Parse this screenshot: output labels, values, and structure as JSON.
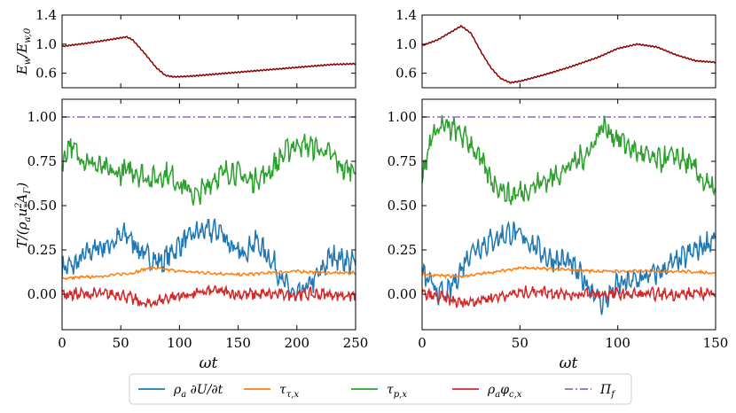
{
  "chart_data": [
    {
      "type": "line",
      "panel": "top-left",
      "ylabel": "E_w/E_w,0",
      "xlim": [
        0,
        250
      ],
      "ylim": [
        0.4,
        1.4
      ],
      "yticks": [
        "0.6",
        "1.0",
        "1.4"
      ],
      "series": [
        {
          "name": "E_w/E_w,0",
          "color": "#8b0000",
          "x": [
            0,
            20,
            40,
            55,
            60,
            70,
            80,
            88,
            95,
            110,
            140,
            170,
            200,
            230,
            250
          ],
          "y": [
            0.97,
            1.01,
            1.06,
            1.1,
            1.06,
            0.88,
            0.68,
            0.57,
            0.55,
            0.56,
            0.6,
            0.64,
            0.68,
            0.72,
            0.73
          ]
        }
      ]
    },
    {
      "type": "line",
      "panel": "top-right",
      "xlim": [
        0,
        150
      ],
      "ylim": [
        0.4,
        1.4
      ],
      "yticks": [
        "0.6",
        "1.0",
        "1.4"
      ],
      "series": [
        {
          "name": "E_w/E_w,0",
          "color": "#8b0000",
          "x": [
            0,
            8,
            15,
            20,
            25,
            30,
            35,
            40,
            45,
            50,
            60,
            75,
            90,
            100,
            110,
            120,
            130,
            140,
            150
          ],
          "y": [
            0.98,
            1.06,
            1.17,
            1.25,
            1.15,
            0.9,
            0.68,
            0.53,
            0.47,
            0.49,
            0.56,
            0.68,
            0.82,
            0.94,
            1.0,
            0.96,
            0.85,
            0.77,
            0.75
          ]
        }
      ]
    },
    {
      "type": "line",
      "panel": "bottom-left",
      "xlabel": "ωt",
      "ylabel": "T/(ρ_a u_*^2 A_Γ)",
      "xlim": [
        0,
        250
      ],
      "ylim": [
        -0.2,
        1.1
      ],
      "xticks": [
        "0",
        "50",
        "100",
        "150",
        "200",
        "250"
      ],
      "yticks": [
        "0.00",
        "0.25",
        "0.50",
        "0.75",
        "1.00"
      ],
      "series": [
        {
          "name": "ρ_a ∂U/∂t",
          "color": "#1f77b4",
          "x": [
            0,
            10,
            25,
            40,
            55,
            70,
            85,
            100,
            115,
            135,
            150,
            165,
            180,
            190,
            200,
            215,
            230,
            250
          ],
          "y": [
            0.15,
            0.16,
            0.25,
            0.28,
            0.34,
            0.22,
            0.18,
            0.28,
            0.35,
            0.36,
            0.22,
            0.3,
            0.18,
            0.05,
            -0.02,
            0.08,
            0.22,
            0.17
          ]
        },
        {
          "name": "τ_τ,x",
          "color": "#ff7f0e",
          "x": [
            0,
            30,
            60,
            75,
            100,
            125,
            150,
            175,
            200,
            225,
            250
          ],
          "y": [
            0.09,
            0.1,
            0.12,
            0.15,
            0.13,
            0.12,
            0.11,
            0.12,
            0.13,
            0.12,
            0.12
          ]
        },
        {
          "name": "τ_p,x",
          "color": "#2ca02c",
          "x": [
            0,
            5,
            15,
            30,
            45,
            60,
            75,
            90,
            105,
            115,
            130,
            145,
            160,
            175,
            190,
            200,
            215,
            230,
            240,
            250
          ],
          "y": [
            0.7,
            0.85,
            0.78,
            0.72,
            0.68,
            0.7,
            0.65,
            0.68,
            0.6,
            0.55,
            0.66,
            0.7,
            0.64,
            0.68,
            0.8,
            0.85,
            0.83,
            0.78,
            0.7,
            0.72
          ]
        },
        {
          "name": "ρ_a φ_c,x",
          "color": "#d62728",
          "x": [
            0,
            25,
            50,
            72,
            90,
            110,
            130,
            150,
            175,
            200,
            225,
            250
          ],
          "y": [
            0.0,
            0.0,
            0.0,
            -0.06,
            -0.02,
            0.0,
            0.02,
            0.0,
            0.0,
            0.0,
            0.0,
            -0.01
          ]
        },
        {
          "name": "Π_f",
          "color": "#9467bd",
          "dash": "dashdot",
          "x": [
            0,
            250
          ],
          "y": [
            1.0,
            1.0
          ]
        }
      ]
    },
    {
      "type": "line",
      "panel": "bottom-right",
      "xlabel": "ωt",
      "xlim": [
        0,
        150
      ],
      "ylim": [
        -0.2,
        1.1
      ],
      "xticks": [
        "0",
        "50",
        "100",
        "150"
      ],
      "yticks": [
        "0.00",
        "0.25",
        "0.50",
        "0.75",
        "1.00"
      ],
      "series": [
        {
          "name": "ρ_a ∂U/∂t",
          "color": "#1f77b4",
          "x": [
            0,
            5,
            12,
            18,
            25,
            35,
            45,
            55,
            65,
            75,
            85,
            92,
            100,
            110,
            120,
            130,
            140,
            150
          ],
          "y": [
            0.12,
            0.05,
            -0.02,
            0.1,
            0.25,
            0.3,
            0.35,
            0.3,
            0.2,
            0.18,
            0.05,
            -0.05,
            0.05,
            0.08,
            0.12,
            0.18,
            0.25,
            0.32
          ]
        },
        {
          "name": "τ_τ,x",
          "color": "#ff7f0e",
          "x": [
            0,
            20,
            40,
            50,
            70,
            90,
            110,
            130,
            150
          ],
          "y": [
            0.11,
            0.1,
            0.13,
            0.15,
            0.14,
            0.13,
            0.13,
            0.13,
            0.12
          ]
        },
        {
          "name": "τ_p,x",
          "color": "#2ca02c",
          "x": [
            0,
            5,
            10,
            18,
            25,
            35,
            45,
            55,
            65,
            75,
            85,
            92,
            100,
            110,
            120,
            130,
            140,
            145,
            150
          ],
          "y": [
            0.65,
            0.9,
            0.95,
            0.92,
            0.85,
            0.65,
            0.55,
            0.6,
            0.65,
            0.72,
            0.8,
            0.95,
            0.88,
            0.8,
            0.75,
            0.78,
            0.7,
            0.62,
            0.58
          ]
        },
        {
          "name": "ρ_a φ_c,x",
          "color": "#d62728",
          "x": [
            0,
            10,
            20,
            35,
            45,
            60,
            75,
            90,
            105,
            120,
            135,
            150
          ],
          "y": [
            0.0,
            -0.02,
            -0.05,
            -0.02,
            0.0,
            0.02,
            0.0,
            0.0,
            0.0,
            0.0,
            0.0,
            0.01
          ]
        },
        {
          "name": "Π_f",
          "color": "#9467bd",
          "dash": "dashdot",
          "x": [
            0,
            150
          ],
          "y": [
            1.0,
            1.0
          ]
        }
      ]
    }
  ],
  "legend": {
    "placement": "bottom-center",
    "entries": [
      {
        "label": "ρ_a ∂U/∂t",
        "color": "#1f77b4"
      },
      {
        "label": "τ_τ,x",
        "color": "#ff7f0e"
      },
      {
        "label": "τ_p,x",
        "color": "#2ca02c"
      },
      {
        "label": "ρ_a φ_c,x",
        "color": "#d62728"
      },
      {
        "label": "Π_f",
        "color": "#9467bd",
        "dash": "dashdot"
      }
    ]
  }
}
